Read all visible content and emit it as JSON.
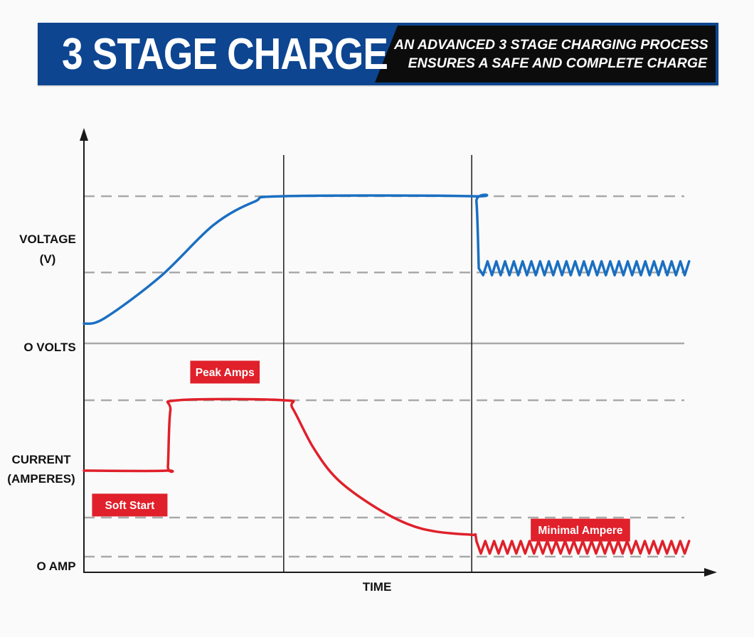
{
  "header": {
    "title": "3 STAGE CHARGE",
    "subtitle_line1": "AN ADVANCED 3 STAGE CHARGING PROCESS",
    "subtitle_line2": "ENSURES A SAFE AND COMPLETE CHARGE"
  },
  "chart_data": {
    "type": "line",
    "title": "3 STAGE CHARGE",
    "xlabel": "TIME",
    "axis_labels": {
      "voltage": [
        "VOLTAGE",
        "(V)"
      ],
      "zero_volts": "O VOLTS",
      "current": [
        "CURRENT",
        "(AMPERES)"
      ],
      "zero_amp": "O AMP"
    },
    "x_range": [
      0,
      10
    ],
    "stage_boundaries": [
      3.4,
      6.6
    ],
    "voltage": {
      "ylim": [
        0,
        1
      ],
      "levels": {
        "high": 1.0,
        "float": 0.45
      },
      "points": [
        [
          0,
          0.08
        ],
        [
          0.35,
          0.12
        ],
        [
          1.3,
          0.42
        ],
        [
          2.2,
          0.79
        ],
        [
          2.9,
          0.96
        ],
        [
          3.4,
          1.0
        ],
        [
          6.6,
          1.0
        ],
        [
          6.68,
          0.96
        ],
        [
          6.72,
          0.48
        ]
      ],
      "ripple": {
        "from": 6.72,
        "to": 10.3,
        "low": 0.43,
        "high": 0.53,
        "cycles": 24
      }
    },
    "current": {
      "ylim": [
        0,
        1
      ],
      "levels": {
        "peak": 1.0,
        "low": 0.25,
        "zero": 0.0
      },
      "points": [
        [
          0,
          0.55
        ],
        [
          1.4,
          0.55
        ],
        [
          1.43,
          0.58
        ],
        [
          1.47,
          0.93
        ],
        [
          1.6,
          1.0
        ],
        [
          3.4,
          1.0
        ],
        [
          3.55,
          0.95
        ],
        [
          3.9,
          0.7
        ],
        [
          4.3,
          0.5
        ],
        [
          4.9,
          0.33
        ],
        [
          5.5,
          0.21
        ],
        [
          6.0,
          0.16
        ],
        [
          6.6,
          0.14
        ],
        [
          6.66,
          0.14
        ],
        [
          6.68,
          0.1
        ]
      ],
      "ripple": {
        "from": 6.68,
        "to": 10.3,
        "low": 0.02,
        "high": 0.1,
        "cycles": 24
      }
    },
    "annotations": [
      {
        "text": "Peak Amps",
        "x": 2.4,
        "y": 1.18,
        "series": "current"
      },
      {
        "text": "Soft Start",
        "x": 0.78,
        "y": 0.33,
        "series": "current"
      },
      {
        "text": "Minimal Ampere",
        "x": 8.45,
        "y": 0.17,
        "series": "current"
      }
    ],
    "colors": {
      "voltage": "#1a6fc2",
      "current": "#e0202a",
      "annotation_bg": "#e0202a",
      "grid": "#a9a9a9",
      "axis": "#1a1a1a"
    },
    "grid": "dashed reference levels"
  }
}
